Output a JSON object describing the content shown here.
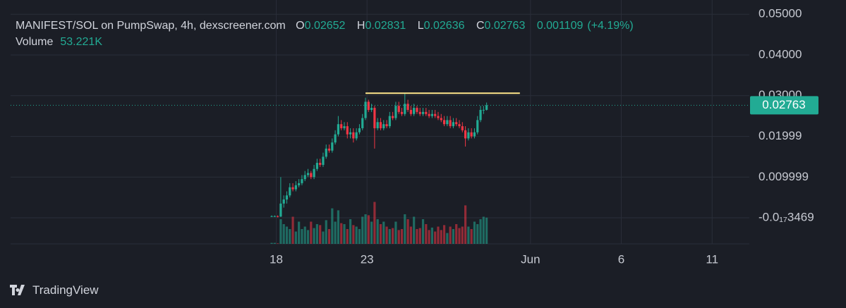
{
  "chart_data": {
    "type": "candlestick",
    "title": "MANIFEST/SOL on PumpSwap, 4h, dexscreener.com",
    "ohlc_labels": [
      "O",
      "H",
      "L",
      "C"
    ],
    "change": 0.001109,
    "change_percent": 4.19,
    "change_percent_label": "(+4.19%)",
    "volume_title": "Volume",
    "volume_label": "53.221K",
    "branding": "TradingView",
    "up_color": "#22ab94",
    "down_color": "#f23645",
    "grid": true,
    "xlim": [
      -86.25,
      157.8
    ],
    "xticks": [
      {
        "value": 1.5,
        "label": "18"
      },
      {
        "value": 31.5,
        "label": "23"
      },
      {
        "value": 85.5,
        "label": "Jun"
      },
      {
        "value": 115.5,
        "label": "6"
      },
      {
        "value": 145.5,
        "label": "11"
      }
    ],
    "ylim": [
      -0.0064,
      0.0535
    ],
    "yticks": [
      {
        "value": 0.05,
        "label": "0.05000"
      },
      {
        "value": 0.04,
        "label": "0.04000"
      },
      {
        "value": 0.03,
        "label": "0.03000"
      },
      {
        "value": 0.01999,
        "label": "0.01999"
      },
      {
        "value": 0.009999,
        "label": "0.009999"
      },
      {
        "value": -3.469e-18,
        "label": "-0.0₁₇3469"
      }
    ],
    "vlim": [
      0,
      200
    ],
    "hline": {
      "value": 0.0306,
      "x": [
        31,
        82
      ],
      "color": "#ffe68a"
    },
    "open": [
      0.0004,
      0.0004,
      0.0004,
      0.0003,
      0.0035,
      0.0045,
      0.0055,
      0.0075,
      0.007,
      0.008,
      0.0085,
      0.0095,
      0.0105,
      0.011,
      0.01,
      0.012,
      0.0135,
      0.013,
      0.015,
      0.017,
      0.0165,
      0.0185,
      0.0205,
      0.023,
      0.022,
      0.0225,
      0.0205,
      0.021,
      0.0195,
      0.021,
      0.022,
      0.0245,
      0.0285,
      0.0265,
      0.027,
      0.022,
      0.0235,
      0.022,
      0.023,
      0.0225,
      0.025,
      0.0245,
      0.0275,
      0.026,
      0.0255,
      0.028,
      0.0265,
      0.0255,
      0.027,
      0.026,
      0.0255,
      0.026,
      0.0255,
      0.025,
      0.0255,
      0.025,
      0.0245,
      0.024,
      0.023,
      0.024,
      0.0225,
      0.0235,
      0.023,
      0.0225,
      0.0215,
      0.0195,
      0.021,
      0.02,
      0.021,
      0.024,
      0.0265,
      0.02652
    ],
    "high": [
      0.0006,
      0.0006,
      0.0006,
      0.01,
      0.0055,
      0.0065,
      0.0085,
      0.0085,
      0.009,
      0.0095,
      0.0105,
      0.0115,
      0.012,
      0.0115,
      0.013,
      0.0145,
      0.0145,
      0.016,
      0.018,
      0.018,
      0.0195,
      0.0215,
      0.025,
      0.024,
      0.0235,
      0.0235,
      0.022,
      0.022,
      0.022,
      0.023,
      0.0255,
      0.0295,
      0.029,
      0.028,
      0.0275,
      0.0245,
      0.0245,
      0.024,
      0.024,
      0.026,
      0.026,
      0.0285,
      0.0285,
      0.027,
      0.0306,
      0.029,
      0.0275,
      0.028,
      0.0275,
      0.027,
      0.027,
      0.027,
      0.0265,
      0.0265,
      0.0265,
      0.026,
      0.0255,
      0.025,
      0.025,
      0.025,
      0.0245,
      0.0245,
      0.024,
      0.0235,
      0.0225,
      0.022,
      0.022,
      0.022,
      0.025,
      0.0275,
      0.0275,
      0.02831
    ],
    "low": [
      0.0002,
      0.0002,
      0.0001,
      0.0002,
      0.0025,
      0.0035,
      0.005,
      0.0065,
      0.0065,
      0.0075,
      0.008,
      0.009,
      0.01,
      0.0095,
      0.0095,
      0.0115,
      0.0125,
      0.0125,
      0.0145,
      0.016,
      0.016,
      0.018,
      0.02,
      0.0215,
      0.0215,
      0.0195,
      0.0195,
      0.0185,
      0.019,
      0.0205,
      0.0215,
      0.024,
      0.026,
      0.026,
      0.017,
      0.0215,
      0.0215,
      0.0215,
      0.022,
      0.022,
      0.024,
      0.024,
      0.0255,
      0.025,
      0.025,
      0.026,
      0.025,
      0.025,
      0.0255,
      0.025,
      0.025,
      0.025,
      0.0245,
      0.0245,
      0.0245,
      0.024,
      0.0235,
      0.0225,
      0.0225,
      0.022,
      0.022,
      0.0225,
      0.022,
      0.021,
      0.0175,
      0.019,
      0.0195,
      0.0195,
      0.0205,
      0.0235,
      0.0255,
      0.02636
    ],
    "close": [
      0.0004,
      0.0004,
      0.0003,
      0.0035,
      0.0045,
      0.0055,
      0.0075,
      0.007,
      0.008,
      0.0085,
      0.0095,
      0.0105,
      0.011,
      0.01,
      0.012,
      0.0135,
      0.013,
      0.015,
      0.017,
      0.0165,
      0.0185,
      0.0205,
      0.023,
      0.022,
      0.0225,
      0.0205,
      0.021,
      0.0195,
      0.021,
      0.022,
      0.0245,
      0.0285,
      0.0265,
      0.027,
      0.022,
      0.0235,
      0.022,
      0.023,
      0.0225,
      0.025,
      0.0245,
      0.0275,
      0.026,
      0.0255,
      0.028,
      0.0265,
      0.0255,
      0.027,
      0.026,
      0.0255,
      0.026,
      0.0255,
      0.025,
      0.0255,
      0.025,
      0.0245,
      0.024,
      0.023,
      0.024,
      0.0225,
      0.0235,
      0.023,
      0.0225,
      0.0215,
      0.0195,
      0.021,
      0.02,
      0.021,
      0.024,
      0.0265,
      0.02652,
      0.02763
    ],
    "volume": [
      2,
      2,
      1,
      50,
      40,
      35,
      30,
      55,
      25,
      45,
      30,
      35,
      28,
      45,
      32,
      40,
      38,
      25,
      48,
      30,
      72,
      45,
      68,
      42,
      40,
      30,
      50,
      38,
      35,
      30,
      55,
      60,
      58,
      45,
      85,
      50,
      40,
      45,
      35,
      30,
      32,
      45,
      28,
      30,
      60,
      50,
      35,
      55,
      30,
      32,
      50,
      40,
      28,
      33,
      25,
      35,
      28,
      38,
      22,
      35,
      30,
      40,
      32,
      35,
      78,
      35,
      30,
      45,
      40,
      50,
      55,
      53.221
    ]
  }
}
